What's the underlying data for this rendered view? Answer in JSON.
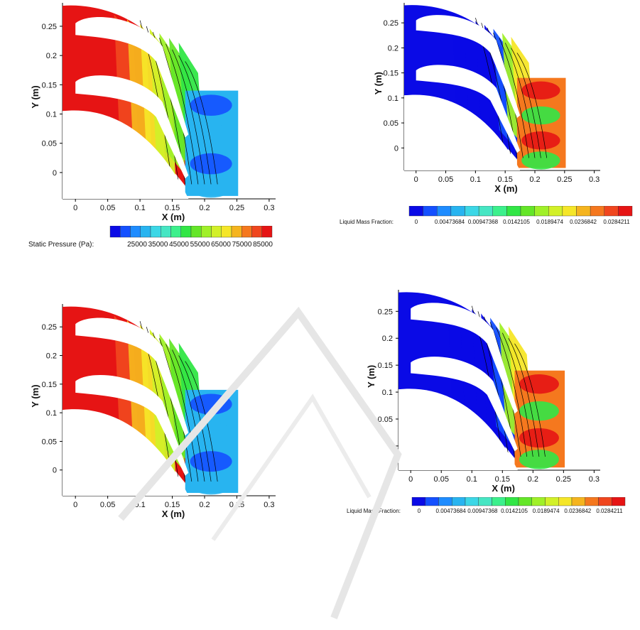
{
  "colors": {
    "scale": [
      "#0a0ae6",
      "#1450ff",
      "#1e8cff",
      "#28b4f0",
      "#3cd7e6",
      "#46e6c3",
      "#3cf08c",
      "#32e646",
      "#64e628",
      "#a0f028",
      "#d2f028",
      "#f5e628",
      "#f5b41e",
      "#f5781e",
      "#f0461e",
      "#e61414"
    ],
    "blade_gap": "#ffffff"
  },
  "colorbars": {
    "pressure": {
      "label": "Static Pressure (Pa):",
      "ticks": [
        "25000",
        "35000",
        "45000",
        "55000",
        "65000",
        "75000",
        "85000"
      ]
    },
    "liquid_top": {
      "label": "Liquid Mass Fraction:",
      "ticks": [
        "0",
        "0.00473684",
        "0.00947368",
        "0.0142105",
        "0.0189474",
        "0.0236842",
        "0.0284211"
      ]
    },
    "liquid_bottom": {
      "label": "Liquid Mass Fraction:",
      "ticks": [
        "0",
        "0.00473684",
        "0.00947368",
        "0.0142105",
        "0.0189474",
        "0.0236842",
        "0.0284211"
      ]
    }
  },
  "chart_data": [
    {
      "type": "heatmap",
      "id": "pressure-top",
      "xlabel": "X (m)",
      "ylabel": "Y (m)",
      "xticks": [
        "0",
        "0.05",
        "0.1",
        "0.15",
        "0.2",
        "0.25",
        "0.3"
      ],
      "yticks": [
        "0",
        "0.05",
        "0.1",
        "0.15",
        "0.2",
        "0.25"
      ],
      "xlim": [
        -0.02,
        0.31
      ],
      "ylim": [
        -0.045,
        0.29
      ],
      "colorbar": "pressure",
      "field": "static pressure, blade-to-blade passage"
    },
    {
      "type": "heatmap",
      "id": "liquid-top",
      "xlabel": "X (m)",
      "ylabel": "Y (m)",
      "xticks": [
        "0",
        "0.05",
        "0.1",
        "0.15",
        "0.2",
        "0.25",
        "0.3"
      ],
      "yticks": [
        "0",
        "0.05",
        "0.1",
        "0.15",
        "0.2",
        "0.25"
      ],
      "xlim": [
        -0.02,
        0.31
      ],
      "ylim": [
        -0.045,
        0.29
      ],
      "colorbar": "liquid_top",
      "field": "liquid mass fraction"
    },
    {
      "type": "heatmap",
      "id": "pressure-bottom",
      "xlabel": "X (m)",
      "ylabel": "Y (m)",
      "xticks": [
        "0",
        "0.05",
        "0.1",
        "0.15",
        "0.2",
        "0.25",
        "0.3"
      ],
      "yticks": [
        "0",
        "0.05",
        "0.1",
        "0.15",
        "0.2",
        "0.25"
      ],
      "xlim": [
        -0.02,
        0.31
      ],
      "ylim": [
        -0.045,
        0.29
      ],
      "colorbar": "pressure",
      "field": "static pressure"
    },
    {
      "type": "heatmap",
      "id": "liquid-bottom",
      "xlabel": "X (m)",
      "ylabel": "Y (m)",
      "xticks": [
        "0",
        "0.05",
        "0.1",
        "0.15",
        "0.2",
        "0.25",
        "0.3"
      ],
      "yticks": [
        "0",
        "0.05",
        "0.1",
        "0.15",
        "0.2",
        "0.25"
      ],
      "xlim": [
        -0.02,
        0.31
      ],
      "ylim": [
        -0.045,
        0.29
      ],
      "colorbar": "liquid_bottom",
      "field": "liquid mass fraction"
    }
  ]
}
